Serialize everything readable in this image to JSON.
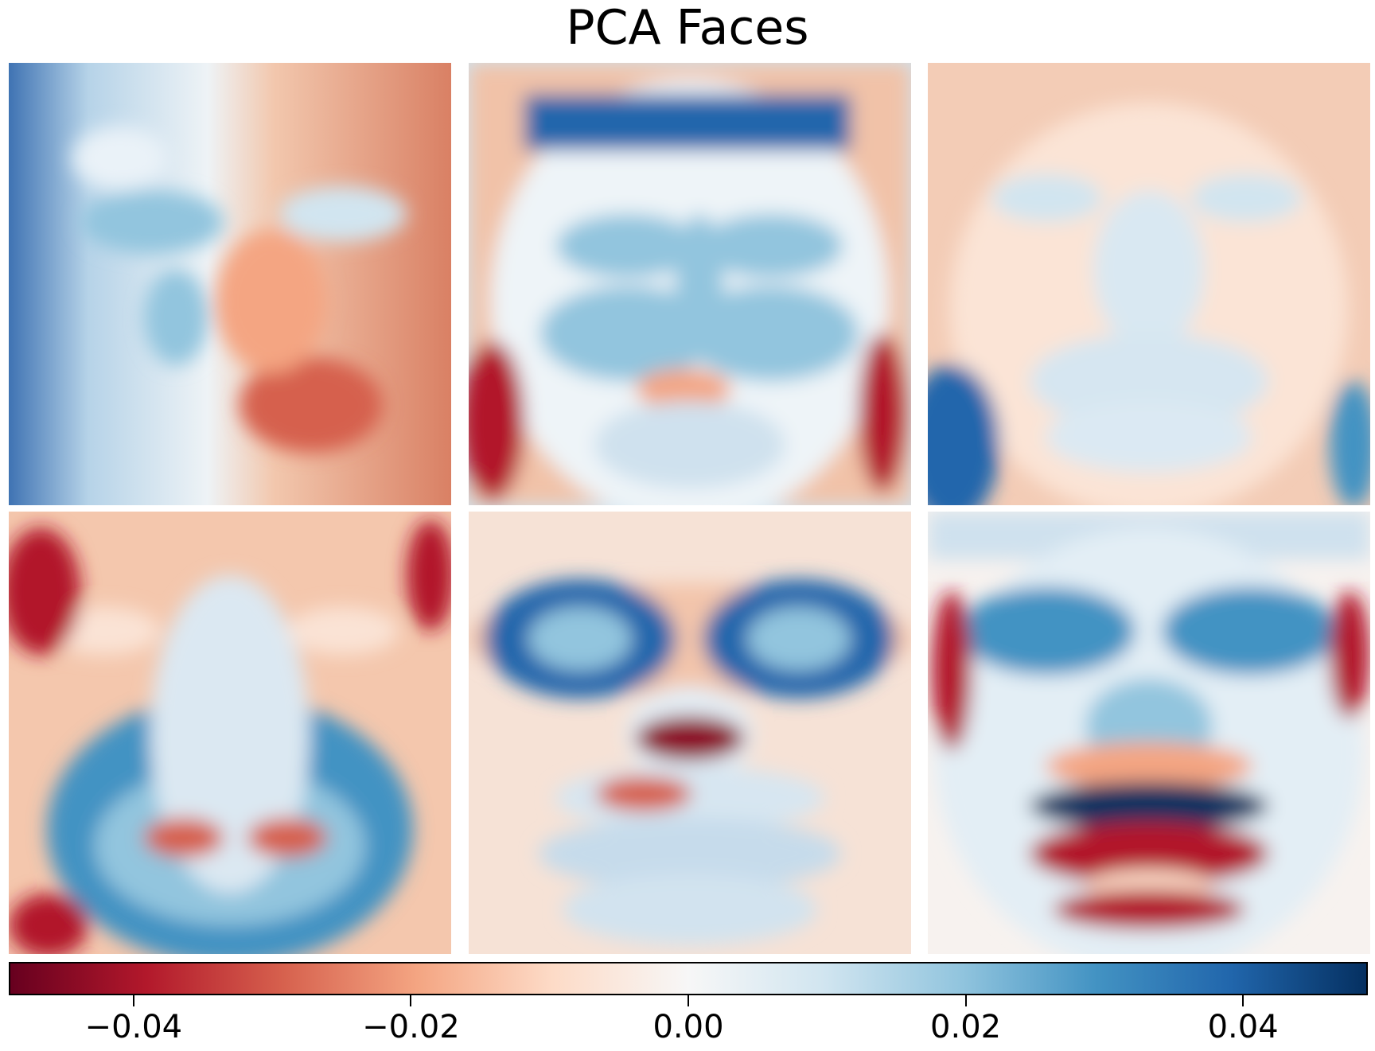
{
  "title": "PCA Faces",
  "chart_data": {
    "type": "heatmap",
    "title": "PCA Faces",
    "panels": 6,
    "grid_layout": "2 rows x 3 columns",
    "colormap": "RdBu",
    "colormap_stops": [
      "#67001f",
      "#b2182b",
      "#d6604d",
      "#f4a582",
      "#fddbc7",
      "#f7f7f7",
      "#d1e5f0",
      "#92c5de",
      "#4393c3",
      "#2166ac",
      "#053061"
    ],
    "colorbar": {
      "orientation": "horizontal",
      "range": [
        -0.049,
        0.049
      ],
      "ticks": [
        -0.04,
        -0.02,
        0.0,
        0.02,
        0.04
      ],
      "tick_labels": [
        "−0.04",
        "−0.02",
        "0.00",
        "0.02",
        "0.04"
      ]
    },
    "axes_visible": false
  }
}
